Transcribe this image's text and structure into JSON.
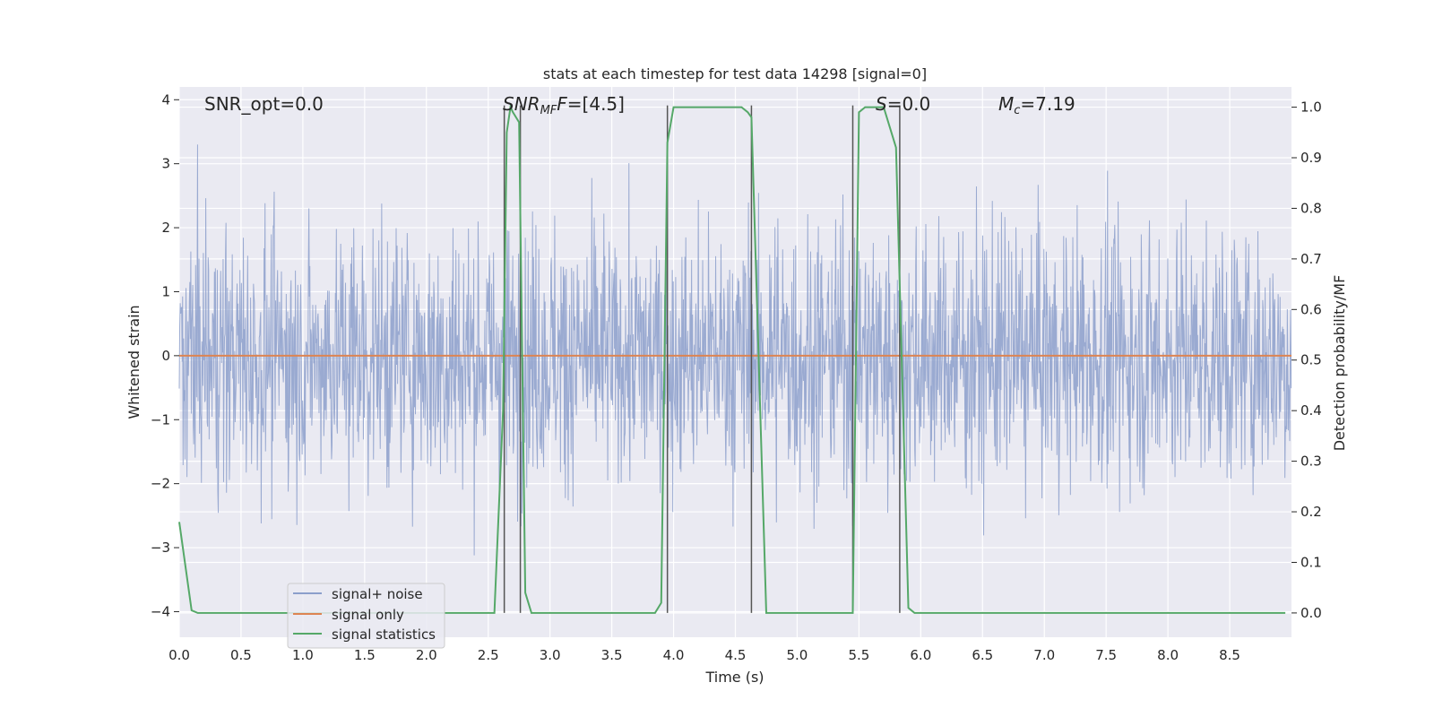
{
  "chart_data": {
    "type": "line",
    "title": "stats at each timestep for test data 14298 [signal=0]",
    "xlabel": "Time (s)",
    "ylabel": "Whitened strain",
    "y2label": "Detection probability/MF",
    "xlim": [
      0.0,
      9.0
    ],
    "ylim": [
      -4.4,
      4.2
    ],
    "y2lim": [
      -0.048,
      1.04
    ],
    "xticks": [
      "0.0",
      "0.5",
      "1.0",
      "1.5",
      "2.0",
      "2.5",
      "3.0",
      "3.5",
      "4.0",
      "4.5",
      "5.0",
      "5.5",
      "6.0",
      "6.5",
      "7.0",
      "7.5",
      "8.0",
      "8.5"
    ],
    "yticks": [
      "4",
      "3",
      "2",
      "1",
      "0",
      "−1",
      "−2",
      "−3",
      "−4"
    ],
    "y2ticks": [
      "1.0",
      "0.9",
      "0.8",
      "0.7",
      "0.6",
      "0.5",
      "0.4",
      "0.3",
      "0.2",
      "0.1",
      "0.0"
    ],
    "grid": true,
    "legend_placement": "lower-left",
    "annotations": {
      "snr_opt": "SNR_opt=0.0",
      "snr_mf_main": "SNR",
      "snr_mf_sub": "MF",
      "snr_mf_value": "=[4.5]",
      "s_main": "S",
      "s_value": "=0.0",
      "mc_main": "M",
      "mc_sub": "c",
      "mc_value": "=7.19"
    },
    "series": [
      {
        "name": "signal+ noise",
        "color": "#8c9fcb",
        "noise_sigma": 1.0,
        "sample_spacing": 0.0039,
        "note_shape": "dense noise in [-3.4, 3.3]"
      },
      {
        "name": "signal only",
        "color": "#dd8452",
        "x": [
          0.0,
          9.0
        ],
        "y": [
          0.0,
          0.0
        ]
      },
      {
        "name": "signal statistics",
        "color": "#55a868",
        "axis": "right",
        "x": [
          0.0,
          0.1,
          0.15,
          2.55,
          2.62,
          2.65,
          2.68,
          2.7,
          2.75,
          2.8,
          2.85,
          3.85,
          3.9,
          3.95,
          4.0,
          4.55,
          4.6,
          4.63,
          4.75,
          5.45,
          5.5,
          5.55,
          5.7,
          5.8,
          5.9,
          5.95,
          8.95
        ],
        "y": [
          0.18,
          0.005,
          0.0,
          0.0,
          0.4,
          0.95,
          1.0,
          0.99,
          0.97,
          0.04,
          0.0,
          0.0,
          0.02,
          0.93,
          1.0,
          1.0,
          0.99,
          0.98,
          0.0,
          0.0,
          0.99,
          1.0,
          1.0,
          0.92,
          0.01,
          0.0,
          0.0
        ]
      }
    ],
    "vertical_markers": [
      2.63,
      2.76,
      3.95,
      4.63,
      5.45,
      5.83
    ]
  }
}
